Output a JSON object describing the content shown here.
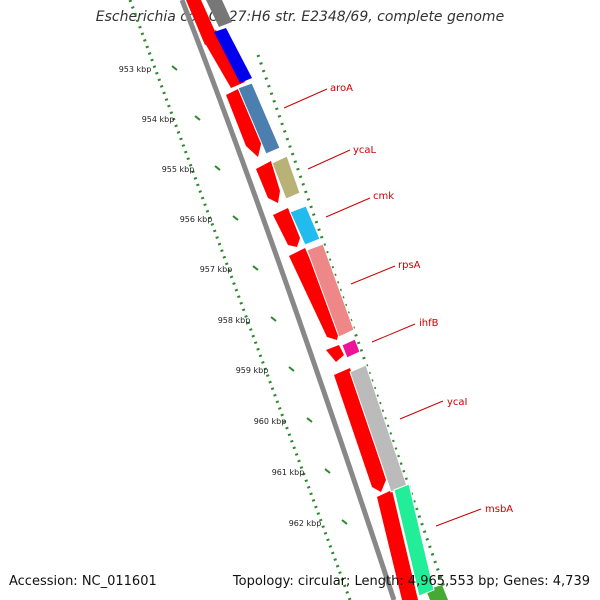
{
  "title": "Escherichia coli O127:H6 str. E2348/69, complete genome",
  "footer": {
    "accession": "Accession: NC_011601",
    "summary": "Topology: circular; Length: 4,965,553 bp; Genes: 4,739"
  },
  "scale": {
    "tick_labels": [
      "953 kbp",
      "954 kbp",
      "955 kbp",
      "956 kbp",
      "957 kbp",
      "958 kbp",
      "959 kbp",
      "960 kbp",
      "961 kbp",
      "962 kbp"
    ]
  },
  "genes": [
    {
      "name": "aroA",
      "color": "#4a7fb0"
    },
    {
      "name": "ycaL",
      "color": "#b9b276"
    },
    {
      "name": "cmk",
      "color": "#22bbee"
    },
    {
      "name": "rpsA",
      "color": "#ee8888"
    },
    {
      "name": "ihfB",
      "color": "#ee1199"
    },
    {
      "name": "ycaI",
      "color": "#bbbbbb"
    },
    {
      "name": "msbA",
      "color": "#22ee99"
    }
  ],
  "colors": {
    "cds": "#ff0000",
    "backbone": "#888888",
    "tick": "#2a8a2a",
    "label": "#cc0000"
  }
}
